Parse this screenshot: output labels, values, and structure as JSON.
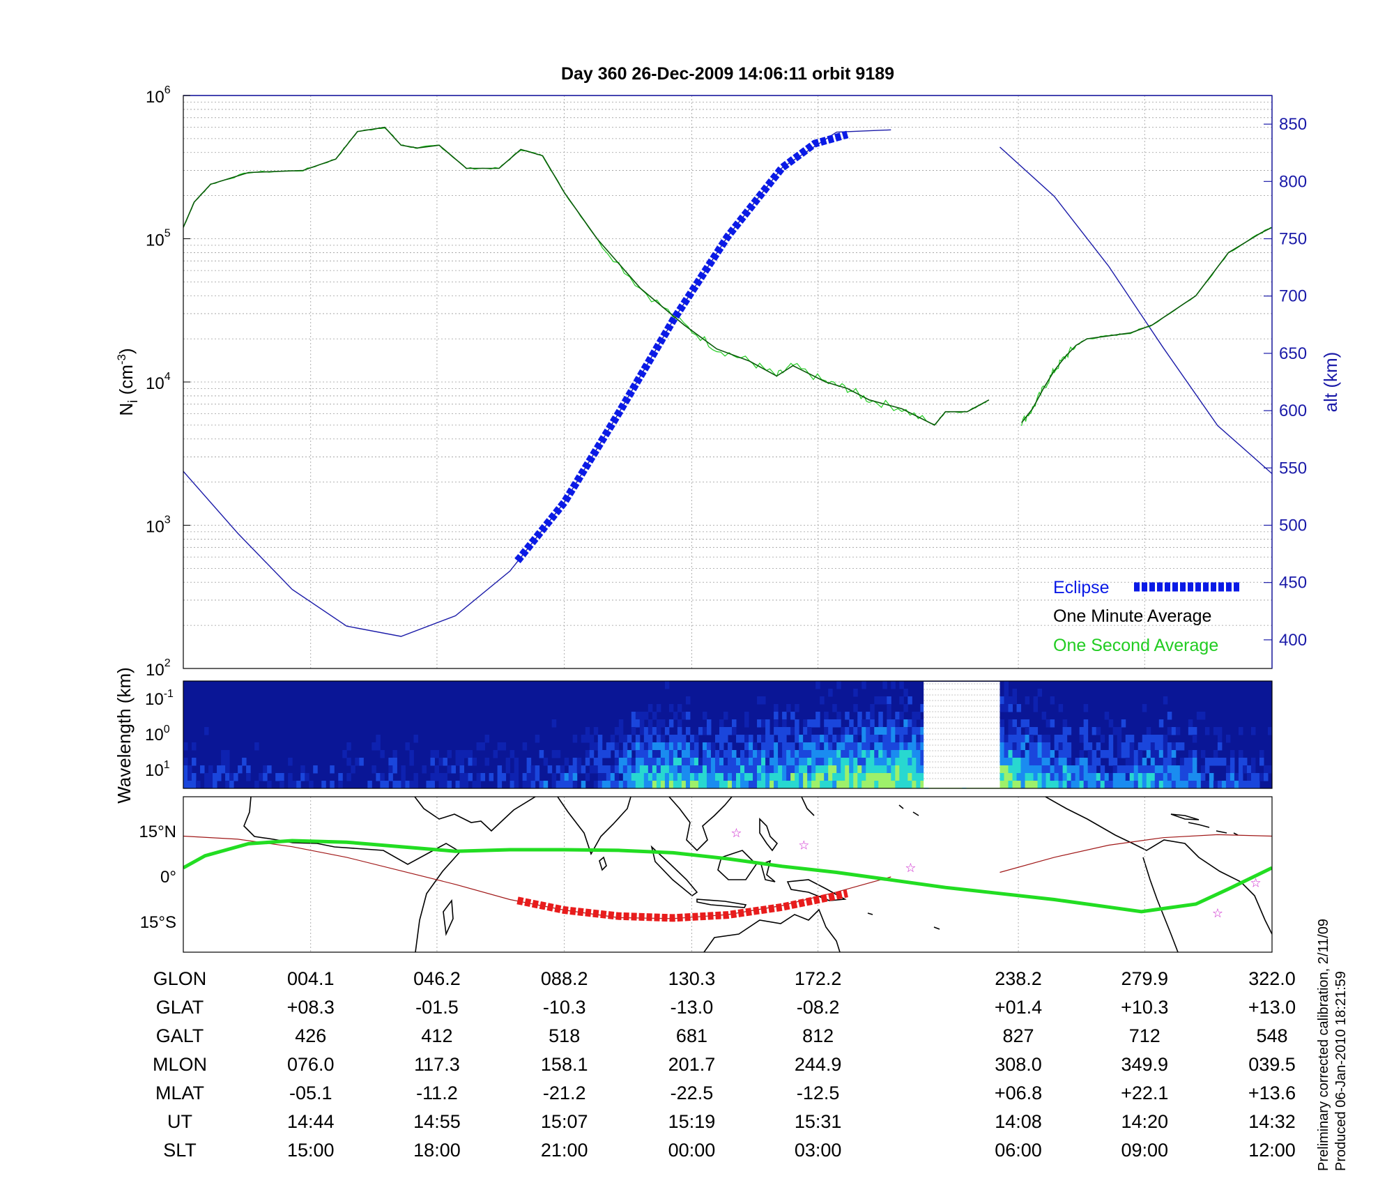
{
  "chart_data": [
    {
      "type": "line",
      "title": "Day 360  26-Dec-2009 14:06:11    orbit 9189",
      "ylabel_left": "N",
      "ylabel_left_sub": "i",
      "ylabel_left_unit": " (cm",
      "ylabel_left_unit_sup": "-3",
      "ylabel_left_unit_end": ")",
      "ylabel_right": "alt (km)",
      "y_left_scale": "log",
      "y_left_lim": [
        100,
        1000000
      ],
      "y_left_ticks": [
        {
          "base": "10",
          "exp": "2",
          "value": 100
        },
        {
          "base": "10",
          "exp": "3",
          "value": 1000
        },
        {
          "base": "10",
          "exp": "4",
          "value": 10000
        },
        {
          "base": "10",
          "exp": "5",
          "value": 100000
        },
        {
          "base": "10",
          "exp": "6",
          "value": 1000000
        }
      ],
      "y_right_lim": [
        375,
        875
      ],
      "y_right_ticks": [
        "400",
        "450",
        "500",
        "550",
        "600",
        "650",
        "700",
        "750",
        "800",
        "850"
      ],
      "x_lim": [
        0,
        1
      ],
      "grid": true,
      "colors": {
        "ni": "#0a5a0a",
        "ni_one_second": "#22cc22",
        "alt": "#1a1aa8",
        "eclipse": "#0a1ae6",
        "axis_right": "#1a1aa8"
      },
      "legend": [
        {
          "label": "Eclipse",
          "color": "#0a1ae6"
        },
        {
          "label": "One Minute Average",
          "color": "#000000"
        },
        {
          "label": "One Second Average",
          "color": "#22cc22"
        }
      ],
      "series": [
        {
          "name": "One Minute Average",
          "x": [
            0.0,
            0.01,
            0.025,
            0.06,
            0.11,
            0.14,
            0.16,
            0.185,
            0.2,
            0.215,
            0.235,
            0.26,
            0.29,
            0.31,
            0.33,
            0.35,
            0.38,
            0.42,
            0.46,
            0.49,
            0.52,
            0.545,
            0.56,
            0.59,
            0.61,
            0.63,
            0.66,
            0.69,
            0.7,
            0.72,
            0.74,
            0.76,
            0.77,
            0.78,
            0.79,
            0.8,
            0.81,
            0.82,
            0.83,
            0.85,
            0.87,
            0.89,
            0.93,
            0.96,
            0.99,
            1.0
          ],
          "y": [
            120000,
            180000,
            240000,
            290000,
            300000,
            360000,
            560000,
            600000,
            450000,
            430000,
            450000,
            310000,
            310000,
            420000,
            380000,
            210000,
            100000,
            45000,
            25000,
            17000,
            14000,
            11000,
            13000,
            10000,
            9000,
            7500,
            6500,
            5000,
            6200,
            6200,
            7500,
            null,
            5200,
            6500,
            9000,
            12000,
            15000,
            18000,
            20000,
            21000,
            22000,
            25000,
            40000,
            80000,
            110000,
            120000
          ]
        },
        {
          "name": "altitude",
          "x": [
            0.0,
            0.05,
            0.1,
            0.15,
            0.2,
            0.25,
            0.3,
            0.35,
            0.4,
            0.45,
            0.5,
            0.55,
            0.6,
            0.65,
            0.68,
            0.75,
            0.8,
            0.85,
            0.9,
            0.95,
            1.0
          ],
          "y": [
            547,
            493,
            444,
            412,
            403,
            421,
            460,
            520,
            598,
            679,
            752,
            812,
            843,
            845,
            null,
            830,
            787,
            726,
            655,
            587,
            545
          ]
        },
        {
          "name": "Eclipse",
          "x": [
            0.307,
            0.35,
            0.4,
            0.45,
            0.5,
            0.55,
            0.58,
            0.61
          ],
          "y": [
            469,
            520,
            598,
            679,
            752,
            812,
            833,
            841
          ]
        }
      ],
      "data_gap": [
        0.68,
        0.75
      ]
    },
    {
      "type": "heatmap",
      "ylabel": "Wavelength (km)",
      "y_scale": "log",
      "y_ticks": [
        {
          "base": "10",
          "exp": "-1"
        },
        {
          "base": "10",
          "exp": "0"
        },
        {
          "base": "10",
          "exp": "1"
        }
      ],
      "colormap": "jet (mostly dark blue, bursts of cyan/yellow-green near 10 km)",
      "data_gap": [
        0.68,
        0.75
      ],
      "activity": {
        "x": [
          0.0,
          0.1,
          0.2,
          0.3,
          0.4,
          0.42,
          0.5,
          0.55,
          0.6,
          0.65,
          0.68,
          0.75,
          0.8,
          0.85,
          0.9,
          0.95,
          1.0
        ],
        "level": [
          0.35,
          0.25,
          0.3,
          0.3,
          0.45,
          0.7,
          0.6,
          0.65,
          0.75,
          0.85,
          0.8,
          0.8,
          0.6,
          0.5,
          0.6,
          0.4,
          0.35
        ]
      }
    },
    {
      "type": "map",
      "y_ticks": [
        "15°N",
        "0°",
        "15°S"
      ],
      "colors": {
        "satellite_track": "#a01818",
        "eclipse_track": "#e81c1c",
        "magnetic_equator": "#22dd22",
        "stars": "#cc22cc",
        "coast": "#000000"
      },
      "satellite_track": {
        "x": [
          0.0,
          0.05,
          0.1,
          0.15,
          0.2,
          0.25,
          0.3,
          0.35,
          0.4,
          0.45,
          0.5,
          0.55,
          0.6,
          0.65,
          0.68,
          0.75,
          0.8,
          0.85,
          0.9,
          0.95,
          1.0
        ],
        "lat": [
          13.5,
          12.5,
          10.0,
          6.5,
          2.0,
          -2.5,
          -7.5,
          -11.0,
          -13.5,
          -13.8,
          -12.5,
          -9.5,
          -5.0,
          0.0,
          null,
          1.5,
          6.5,
          10.5,
          13.0,
          14.0,
          13.5
        ]
      },
      "eclipse_track": {
        "x": [
          0.307,
          0.35,
          0.4,
          0.45,
          0.5,
          0.55,
          0.61
        ],
        "lat": [
          -7.8,
          -11.0,
          -13.0,
          -13.6,
          -12.6,
          -10.0,
          -5.5
        ]
      },
      "magnetic_equator": {
        "x": [
          0.0,
          0.02,
          0.06,
          0.1,
          0.15,
          0.2,
          0.25,
          0.3,
          0.35,
          0.4,
          0.45,
          0.5,
          0.55,
          0.6,
          0.65,
          0.7,
          0.75,
          0.8,
          0.85,
          0.88,
          0.93,
          0.96,
          1.0
        ],
        "lat": [
          3.0,
          7.0,
          11.0,
          12.0,
          11.5,
          10.0,
          8.5,
          9.0,
          9.0,
          8.8,
          8.0,
          6.0,
          3.5,
          1.5,
          -1.0,
          -3.5,
          -5.5,
          -7.5,
          -10.0,
          -11.5,
          -9.0,
          -4.0,
          3.0
        ]
      },
      "stars_x": [
        0.508,
        0.57,
        0.668,
        0.95,
        0.985
      ],
      "stars_lat": [
        14.5,
        10.5,
        3.0,
        -12.0,
        -2.0
      ]
    }
  ],
  "table": {
    "row_labels": [
      "GLON",
      "GLAT",
      "GALT",
      "MLON",
      "MLAT",
      "UT",
      "SLT"
    ],
    "columns": [
      {
        "x": 0.117,
        "values": [
          "004.1",
          "+08.3",
          "426",
          "076.0",
          "-05.1",
          "14:44",
          "15:00"
        ]
      },
      {
        "x": 0.233,
        "values": [
          "046.2",
          "-01.5",
          "412",
          "117.3",
          "-11.2",
          "14:55",
          "18:00"
        ]
      },
      {
        "x": 0.35,
        "values": [
          "088.2",
          "-10.3",
          "518",
          "158.1",
          "-21.2",
          "15:07",
          "21:00"
        ]
      },
      {
        "x": 0.467,
        "values": [
          "130.3",
          "-13.0",
          "681",
          "201.7",
          "-22.5",
          "15:19",
          "00:00"
        ]
      },
      {
        "x": 0.583,
        "values": [
          "172.2",
          "-08.2",
          "812",
          "244.9",
          "-12.5",
          "15:31",
          "03:00"
        ]
      },
      {
        "x": 0.767,
        "values": [
          "238.2",
          "+01.4",
          "827",
          "308.0",
          "+06.8",
          "14:08",
          "06:00"
        ]
      },
      {
        "x": 0.883,
        "values": [
          "279.9",
          "+10.3",
          "712",
          "349.9",
          "+22.1",
          "14:20",
          "09:00"
        ]
      },
      {
        "x": 1.0,
        "values": [
          "322.0",
          "+13.0",
          "548",
          "039.5",
          "+13.6",
          "14:32",
          "12:00"
        ]
      }
    ]
  },
  "footnote": {
    "line1": "Preliminary corrected calibration, 2/11/09",
    "line2": "Produced 06-Jan-2010 18:21:59"
  }
}
